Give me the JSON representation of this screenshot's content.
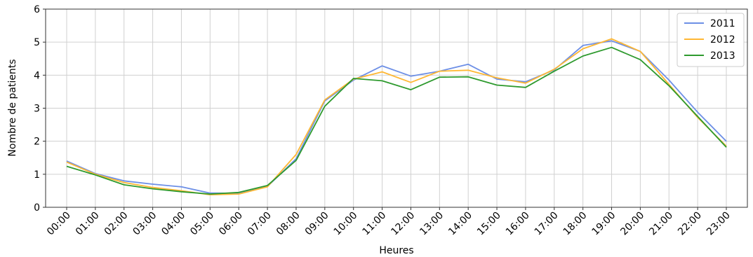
{
  "chart_data": {
    "type": "line",
    "title": "",
    "xlabel": "Heures",
    "ylabel": "Nombre de patients",
    "ylim": [
      0,
      6
    ],
    "yticks": [
      0,
      1,
      2,
      3,
      4,
      5,
      6
    ],
    "grid": true,
    "legend_position": "top-right",
    "categories": [
      "00:00",
      "01:00",
      "02:00",
      "03:00",
      "04:00",
      "05:00",
      "06:00",
      "07:00",
      "08:00",
      "09:00",
      "10:00",
      "11:00",
      "12:00",
      "13:00",
      "14:00",
      "15:00",
      "16:00",
      "17:00",
      "18:00",
      "19:00",
      "20:00",
      "21:00",
      "22:00",
      "23:00"
    ],
    "series": [
      {
        "name": "2011",
        "color": "#6d8fe6",
        "values": [
          1.4,
          1.02,
          0.8,
          0.7,
          0.62,
          0.43,
          0.42,
          0.63,
          1.47,
          3.22,
          3.85,
          4.28,
          3.97,
          4.12,
          4.33,
          3.88,
          3.8,
          4.16,
          4.9,
          5.04,
          4.72,
          3.85,
          2.88,
          2.0
        ]
      },
      {
        "name": "2012",
        "color": "#ffb733",
        "values": [
          1.37,
          1.0,
          0.75,
          0.6,
          0.5,
          0.38,
          0.4,
          0.62,
          1.6,
          3.25,
          3.88,
          4.1,
          3.78,
          4.12,
          4.15,
          3.92,
          3.76,
          4.18,
          4.8,
          5.1,
          4.72,
          3.72,
          2.72,
          1.85
        ]
      },
      {
        "name": "2013",
        "color": "#2e9a2e",
        "values": [
          1.24,
          0.98,
          0.68,
          0.56,
          0.47,
          0.4,
          0.45,
          0.66,
          1.42,
          3.06,
          3.9,
          3.83,
          3.56,
          3.94,
          3.95,
          3.7,
          3.63,
          4.12,
          4.58,
          4.84,
          4.47,
          3.68,
          2.75,
          1.82
        ]
      }
    ]
  }
}
